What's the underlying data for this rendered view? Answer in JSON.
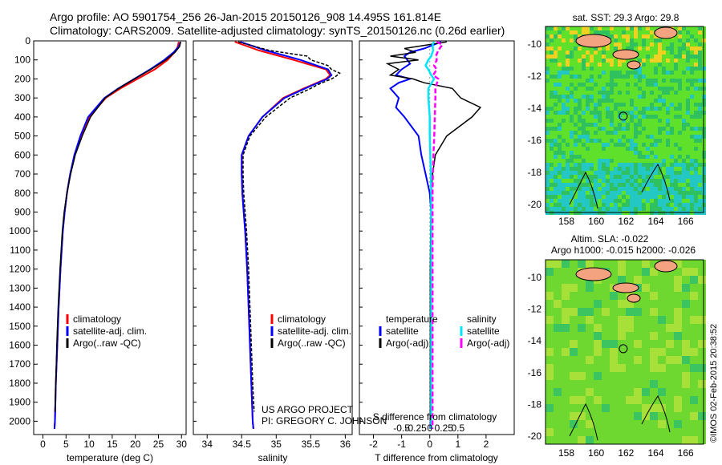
{
  "title": {
    "line1": "Argo profile: AO 5901754_256 26-Jan-2015 20150126_908 14.495S 161.814E",
    "line2": "Climatology: CARS2009. Satellite-adjusted climatology: synTS_20150126.nc (0.26d earlier)"
  },
  "colors": {
    "climatology": "#ff0000",
    "satellite": "#0000ff",
    "argo": "#000000",
    "salinity_satellite": "#00e5ff",
    "salinity_argo": "#ff00ff"
  },
  "depth_axis": {
    "ticks": [
      0,
      100,
      200,
      300,
      400,
      500,
      600,
      700,
      800,
      900,
      1000,
      1100,
      1200,
      1300,
      1400,
      1500,
      1600,
      1700,
      1800,
      1900,
      2000
    ],
    "ylim": [
      0,
      2070
    ]
  },
  "panels": {
    "temperature": {
      "xlabel": "temperature (deg C)",
      "ticks": [
        0,
        5,
        10,
        15,
        20,
        25,
        30
      ],
      "legend": [
        "climatology",
        "satellite-adj. clim.",
        "Argo(..raw -QC)"
      ]
    },
    "salinity": {
      "xlabel": "salinity",
      "ticks": [
        "34",
        "34.5",
        "35",
        "35.5",
        "36"
      ],
      "legend": [
        "climatology",
        "satellite-adj. clim.",
        "Argo(..raw -QC)"
      ],
      "credit1": "US ARGO PROJECT",
      "credit2": "PI: GREGORY C. JOHNSON"
    },
    "difference": {
      "xlabel": "T difference from climatology",
      "xlabel_top": "S difference from climatology",
      "ticks_t": [
        "-2",
        "-1",
        "0",
        "1",
        "2"
      ],
      "ticks_s": [
        "-0.5",
        "-0.25",
        "0",
        "0.25",
        "0.5"
      ],
      "legend_t_title": "temperature",
      "legend_s_title": "salinity",
      "legend_t": [
        "satellite",
        "Argo(-adj)"
      ],
      "legend_s": [
        "satellite",
        "Argo(-adj)"
      ]
    }
  },
  "maps": {
    "sst_title": "sat. SST: 29.3 Argo: 29.8",
    "sla_title1": "Altim. SLA: -0.022",
    "sla_title2": "Argo h1000: -0.015 h2000: -0.026",
    "lon_ticks": [
      "158",
      "160",
      "162",
      "164",
      "166"
    ],
    "lat_ticks": [
      "-10",
      "-12",
      "-14",
      "-16",
      "-18",
      "-20"
    ],
    "float_lon": 161.814,
    "float_lat": -14.495
  },
  "footer": "©IMOS 02-Feb-2015 20:38:52",
  "chart_data": [
    {
      "type": "line",
      "name": "temperature",
      "xlabel": "temperature (deg C)",
      "ylabel": "",
      "xlim": [
        -2,
        31
      ],
      "ylim": [
        2070,
        0
      ],
      "series": [
        {
          "name": "climatology",
          "depth": [
            5,
            30,
            60,
            100,
            150,
            200,
            250,
            300,
            400,
            500,
            600,
            700,
            800,
            900,
            1000,
            1200,
            1400,
            1600,
            1800,
            2000,
            2040
          ],
          "values": [
            29.4,
            29.2,
            28.5,
            27,
            24.2,
            20.5,
            16.8,
            13.6,
            10,
            8.2,
            6.9,
            5.9,
            5.2,
            4.7,
            4.3,
            3.8,
            3.4,
            3.1,
            2.8,
            2.6,
            2.5
          ]
        },
        {
          "name": "satellite-adj. clim.",
          "depth": [
            5,
            30,
            60,
            100,
            150,
            200,
            250,
            300,
            400,
            500,
            600,
            700,
            800,
            900,
            1000,
            1200,
            1400,
            1600,
            1800,
            2000,
            2040
          ],
          "values": [
            29.8,
            29.4,
            28.3,
            26.3,
            23.2,
            19.8,
            16.3,
            13.3,
            9.8,
            8.1,
            6.8,
            5.9,
            5.2,
            4.7,
            4.3,
            3.8,
            3.4,
            3.1,
            2.8,
            2.6,
            2.5
          ]
        },
        {
          "name": "Argo(..raw -QC)",
          "depth": [
            5,
            30,
            60,
            100,
            150,
            200,
            250,
            300,
            400,
            500,
            600,
            700,
            800,
            900,
            1000,
            1200,
            1400,
            1600,
            1800,
            1950
          ],
          "values": [
            29.8,
            29.6,
            28.6,
            26.6,
            23.4,
            19.8,
            16.4,
            13.5,
            10.3,
            8.5,
            7,
            6,
            5.2,
            4.6,
            4.2,
            3.7,
            3.3,
            3,
            2.8,
            2.6
          ]
        }
      ]
    },
    {
      "type": "line",
      "name": "salinity",
      "xlabel": "salinity",
      "ylabel": "",
      "xlim": [
        33.8,
        36.1
      ],
      "ylim": [
        2070,
        0
      ],
      "series": [
        {
          "name": "climatology",
          "depth": [
            5,
            50,
            100,
            150,
            180,
            200,
            250,
            300,
            400,
            500,
            600,
            700,
            800,
            900,
            1000,
            1200,
            1400,
            1600,
            1800,
            2000,
            2040
          ],
          "values": [
            34.4,
            34.75,
            35.25,
            35.72,
            35.78,
            35.72,
            35.4,
            35.1,
            34.8,
            34.6,
            34.5,
            34.5,
            34.51,
            34.53,
            34.55,
            34.58,
            34.6,
            34.62,
            34.64,
            34.66,
            34.67
          ]
        },
        {
          "name": "satellite-adj. clim.",
          "depth": [
            5,
            50,
            100,
            150,
            180,
            200,
            250,
            300,
            400,
            500,
            600,
            700,
            800,
            900,
            1000,
            1200,
            1400,
            1600,
            1800,
            2000,
            2040
          ],
          "values": [
            34.48,
            34.85,
            35.35,
            35.75,
            35.8,
            35.74,
            35.42,
            35.12,
            34.8,
            34.6,
            34.5,
            34.5,
            34.51,
            34.53,
            34.55,
            34.58,
            34.6,
            34.62,
            34.64,
            34.66,
            34.67
          ]
        },
        {
          "name": "Argo(..raw -QC)",
          "depth": [
            5,
            50,
            80,
            100,
            130,
            150,
            170,
            190,
            200,
            230,
            250,
            300,
            400,
            500,
            600,
            700,
            800,
            900,
            1000,
            1200,
            1400,
            1600,
            1800,
            1950
          ],
          "values": [
            34.45,
            34.9,
            35.45,
            35.5,
            35.75,
            35.8,
            35.92,
            35.85,
            35.8,
            35.6,
            35.5,
            35.2,
            34.85,
            34.62,
            34.52,
            34.52,
            34.53,
            34.55,
            34.57,
            34.6,
            34.62,
            34.64,
            34.66,
            34.68
          ]
        }
      ]
    },
    {
      "type": "line",
      "name": "difference",
      "xlabel": "T difference from climatology",
      "xlabel_top": "S difference from climatology",
      "ylabel": "",
      "xlim": [
        -2.5,
        3.0
      ],
      "ylim": [
        2070,
        0
      ],
      "series": [
        {
          "name": "temperature satellite",
          "depth": [
            5,
            40,
            60,
            80,
            100,
            120,
            150,
            180,
            200,
            220,
            250,
            300,
            350,
            400,
            500,
            600,
            700,
            800,
            900,
            1000,
            1200,
            1500,
            1800,
            2000,
            2040
          ],
          "values": [
            0.4,
            -0.2,
            -0.7,
            -0.9,
            -0.8,
            -0.7,
            -1,
            -1.2,
            -0.7,
            -1.1,
            -1.4,
            -1.1,
            -1.2,
            -0.9,
            -0.4,
            -0.3,
            -0.15,
            0,
            0.05,
            0.05,
            0.05,
            0.05,
            0.04,
            0.03,
            0.02
          ]
        },
        {
          "name": "temperature Argo(-adj)",
          "depth": [
            5,
            40,
            60,
            80,
            100,
            120,
            150,
            180,
            200,
            220,
            250,
            300,
            350,
            400,
            500,
            600,
            700,
            800,
            900,
            1000,
            1200,
            1500,
            1800,
            2000
          ],
          "values": [
            0.6,
            -0.9,
            -0.5,
            -1.4,
            -0.4,
            -1.5,
            -1.1,
            -1.4,
            -0.6,
            -0.2,
            0.8,
            1.1,
            1.8,
            1.5,
            0.6,
            0.2,
            0.1,
            0.05,
            0.04,
            0.03,
            0.02,
            0.02,
            0.02,
            0.02
          ]
        },
        {
          "name": "salinity satellite",
          "depth": [
            5,
            20,
            50,
            80,
            100,
            130,
            150,
            180,
            200,
            250,
            300,
            400,
            500,
            600,
            700,
            800,
            900,
            1000,
            1200,
            1500,
            1800,
            2000,
            2040
          ],
          "values": [
            0.15,
            0.1,
            0.12,
            0.05,
            -0.05,
            -0.15,
            -0.05,
            0.05,
            0.15,
            -0.05,
            -0.05,
            0.0,
            0.0,
            0.02,
            0.04,
            0.05,
            0.05,
            0.05,
            0.05,
            0.05,
            0.05,
            0.05,
            0.05
          ]
        },
        {
          "name": "salinity Argo(-adj)",
          "depth": [
            5,
            20,
            50,
            80,
            100,
            130,
            150,
            180,
            200,
            250,
            300,
            400,
            500,
            600,
            700,
            800,
            900,
            1000,
            1200,
            1500,
            1800,
            2000,
            2040
          ],
          "values": [
            0.25,
            0.45,
            0.3,
            0.22,
            0.25,
            0.15,
            0.25,
            0.12,
            0.3,
            0.2,
            0.2,
            0.18,
            0.16,
            0.13,
            0.11,
            0.1,
            0.1,
            0.1,
            0.1,
            0.1,
            0.1,
            0.1,
            0.1
          ]
        }
      ]
    }
  ]
}
